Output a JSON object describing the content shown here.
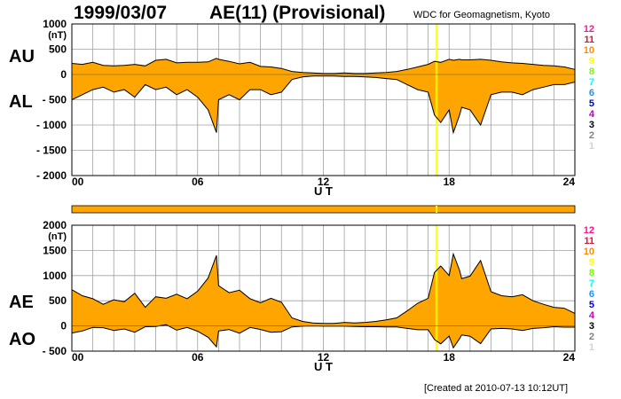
{
  "header": {
    "date": "1999/03/07",
    "title": "AE(11) (Provisional)",
    "source": "WDC for Geomagnetism, Kyoto",
    "footer": "[Created at 2010-07-13 10:12UT]"
  },
  "colors": {
    "fill": "#ffa500",
    "line": "#000000",
    "grid": "#a0a0a0",
    "marker": "#ffff00"
  },
  "station_scale": [
    {
      "label": "12",
      "color": "#ff1493"
    },
    {
      "label": "11",
      "color": "#dc143c"
    },
    {
      "label": "10",
      "color": "#ff8c00"
    },
    {
      "label": "9",
      "color": "#ffff00"
    },
    {
      "label": "8",
      "color": "#7cfc00"
    },
    {
      "label": "7",
      "color": "#00ffff"
    },
    {
      "label": "6",
      "color": "#1e90ff"
    },
    {
      "label": "5",
      "color": "#0000cd"
    },
    {
      "label": "4",
      "color": "#c000c0"
    },
    {
      "label": "3",
      "color": "#000000"
    },
    {
      "label": "2",
      "color": "#808080"
    },
    {
      "label": "1",
      "color": "#d3d3d3"
    }
  ],
  "chart_data": [
    {
      "type": "area",
      "panel": "AU/AL",
      "series_labels": [
        "AU",
        "AL"
      ],
      "unit_label": "(nT)",
      "xlabel": "U T",
      "xticks": [
        "00",
        "06",
        "12",
        "18",
        "24"
      ],
      "xlim": [
        0,
        24
      ],
      "ylim": [
        -2000,
        1000
      ],
      "yticks": [
        1000,
        500,
        0,
        -500,
        -1000,
        -1500,
        -2000
      ],
      "ytick_labels": [
        "1000",
        "500",
        "0",
        "- 500",
        "- 1000",
        "- 1500",
        "- 2000"
      ],
      "grid": true,
      "marker_hours": [
        17.4
      ],
      "x": [
        0,
        0.5,
        1,
        1.5,
        2,
        2.5,
        3,
        3.5,
        4,
        4.5,
        5,
        5.5,
        6,
        6.5,
        6.9,
        7,
        7.5,
        8,
        8.5,
        9,
        9.5,
        10,
        10.5,
        11,
        11.5,
        12,
        12.5,
        13,
        13.5,
        14,
        14.5,
        15,
        15.5,
        16,
        16.5,
        17,
        17.3,
        17.6,
        18,
        18.2,
        18.5,
        18.6,
        19,
        19.5,
        20,
        20.5,
        21,
        21.5,
        22,
        22.5,
        23,
        23.5,
        24
      ],
      "series": [
        {
          "name": "AU",
          "values": [
            220,
            200,
            240,
            180,
            170,
            180,
            200,
            170,
            280,
            300,
            230,
            240,
            240,
            250,
            320,
            300,
            260,
            210,
            240,
            160,
            150,
            120,
            60,
            40,
            30,
            20,
            20,
            30,
            20,
            20,
            30,
            40,
            60,
            100,
            150,
            200,
            260,
            240,
            300,
            280,
            300,
            290,
            290,
            300,
            280,
            250,
            230,
            220,
            200,
            180,
            170,
            150,
            100
          ]
        },
        {
          "name": "AL",
          "values": [
            -500,
            -400,
            -300,
            -250,
            -350,
            -300,
            -450,
            -200,
            -300,
            -250,
            -400,
            -300,
            -450,
            -700,
            -1150,
            -500,
            -400,
            -500,
            -300,
            -300,
            -400,
            -350,
            -100,
            -50,
            -30,
            -30,
            -30,
            -40,
            -40,
            -50,
            -60,
            -80,
            -100,
            -200,
            -300,
            -350,
            -800,
            -950,
            -700,
            -1150,
            -800,
            -650,
            -700,
            -1000,
            -400,
            -350,
            -350,
            -400,
            -300,
            -250,
            -200,
            -200,
            -150
          ]
        }
      ]
    },
    {
      "type": "area",
      "panel": "AE/AO",
      "series_labels": [
        "AE",
        "AO"
      ],
      "unit_label": "(nT)",
      "xlabel": "U T",
      "xticks": [
        "00",
        "06",
        "12",
        "18",
        "24"
      ],
      "xlim": [
        0,
        24
      ],
      "ylim": [
        -500,
        2000
      ],
      "yticks": [
        2000,
        1500,
        1000,
        500,
        0,
        -500
      ],
      "ytick_labels": [
        "2000",
        "1500",
        "1000",
        "500",
        "0",
        "- 500"
      ],
      "grid": true,
      "marker_hours": [
        17.4
      ],
      "x": [
        0,
        0.5,
        1,
        1.5,
        2,
        2.5,
        3,
        3.5,
        4,
        4.5,
        5,
        5.5,
        6,
        6.5,
        6.9,
        7,
        7.5,
        8,
        8.5,
        9,
        9.5,
        10,
        10.5,
        11,
        11.5,
        12,
        12.5,
        13,
        13.5,
        14,
        14.5,
        15,
        15.5,
        16,
        16.5,
        17,
        17.3,
        17.6,
        18,
        18.2,
        18.5,
        18.6,
        19,
        19.5,
        20,
        20.5,
        21,
        21.5,
        22,
        22.5,
        23,
        23.5,
        24
      ],
      "series": [
        {
          "name": "AE",
          "values": [
            720,
            600,
            540,
            430,
            520,
            480,
            650,
            370,
            580,
            550,
            630,
            540,
            690,
            950,
            1400,
            800,
            660,
            710,
            540,
            460,
            550,
            470,
            160,
            90,
            60,
            50,
            50,
            70,
            60,
            70,
            90,
            120,
            160,
            300,
            450,
            550,
            1060,
            1190,
            1000,
            1430,
            1100,
            940,
            990,
            1300,
            680,
            600,
            580,
            620,
            500,
            430,
            370,
            350,
            250
          ]
        },
        {
          "name": "AO",
          "values": [
            -140,
            -100,
            -30,
            -35,
            -90,
            -60,
            -125,
            -15,
            -10,
            25,
            -85,
            -30,
            -105,
            -225,
            -415,
            -100,
            -70,
            -145,
            -30,
            -70,
            -125,
            -115,
            -20,
            -5,
            0,
            -5,
            -5,
            -5,
            -10,
            -15,
            -15,
            -20,
            -20,
            -50,
            -75,
            -75,
            -270,
            -355,
            -200,
            -435,
            -250,
            -180,
            -205,
            -350,
            -60,
            -50,
            -60,
            -90,
            -50,
            -35,
            -15,
            -25,
            -25
          ]
        }
      ]
    }
  ]
}
